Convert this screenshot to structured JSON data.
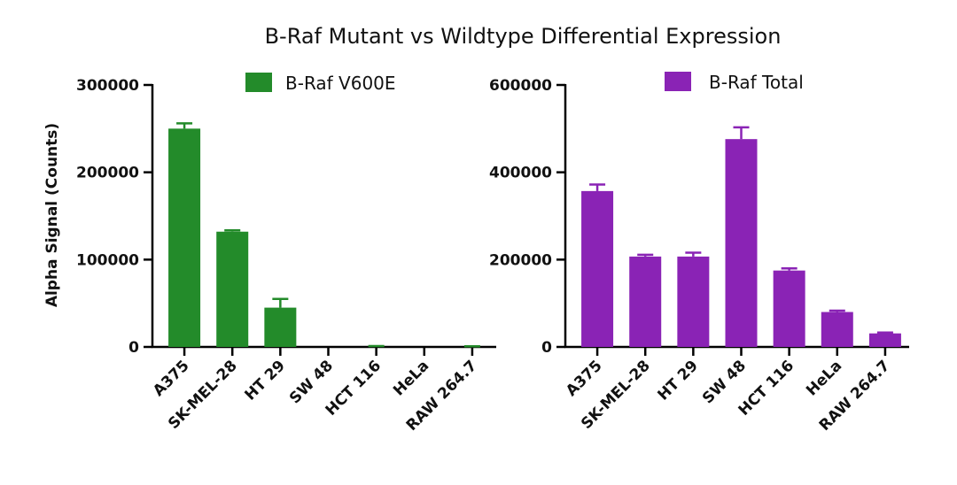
{
  "chart_data": {
    "title": "B-Raf Mutant vs Wildtype Differential Expression",
    "ylabel": "Alpha Signal (Counts)",
    "panels": [
      {
        "type": "bar",
        "name": "mutant",
        "legend": "B-Raf V600E",
        "color": "#238b2a",
        "categories": [
          "A375",
          "SK-MEL-28",
          "HT 29",
          "SW 48",
          "HCT 116",
          "HeLa",
          "RAW 264.7"
        ],
        "values": [
          250000,
          132000,
          45000,
          0,
          0,
          0,
          0
        ],
        "errors": [
          6000,
          1500,
          10000,
          0,
          1000,
          0,
          800
        ],
        "ylim": [
          0,
          300000
        ],
        "yticks": [
          0,
          100000,
          200000,
          300000
        ],
        "ytick_labels": [
          "0",
          "100000",
          "200000",
          "300000"
        ]
      },
      {
        "type": "bar",
        "name": "total",
        "legend": "B-Raf Total",
        "color": "#8a23b5",
        "categories": [
          "A375",
          "SK-MEL-28",
          "HT 29",
          "SW 48",
          "HCT 116",
          "HeLa",
          "RAW 264.7"
        ],
        "values": [
          357000,
          207000,
          207000,
          476000,
          175000,
          80000,
          31000
        ],
        "errors": [
          15000,
          4000,
          9000,
          27000,
          5000,
          3000,
          2000
        ],
        "ylim": [
          0,
          600000
        ],
        "yticks": [
          0,
          200000,
          400000,
          600000
        ],
        "ytick_labels": [
          "0",
          "200000",
          "400000",
          "600000"
        ]
      }
    ]
  }
}
